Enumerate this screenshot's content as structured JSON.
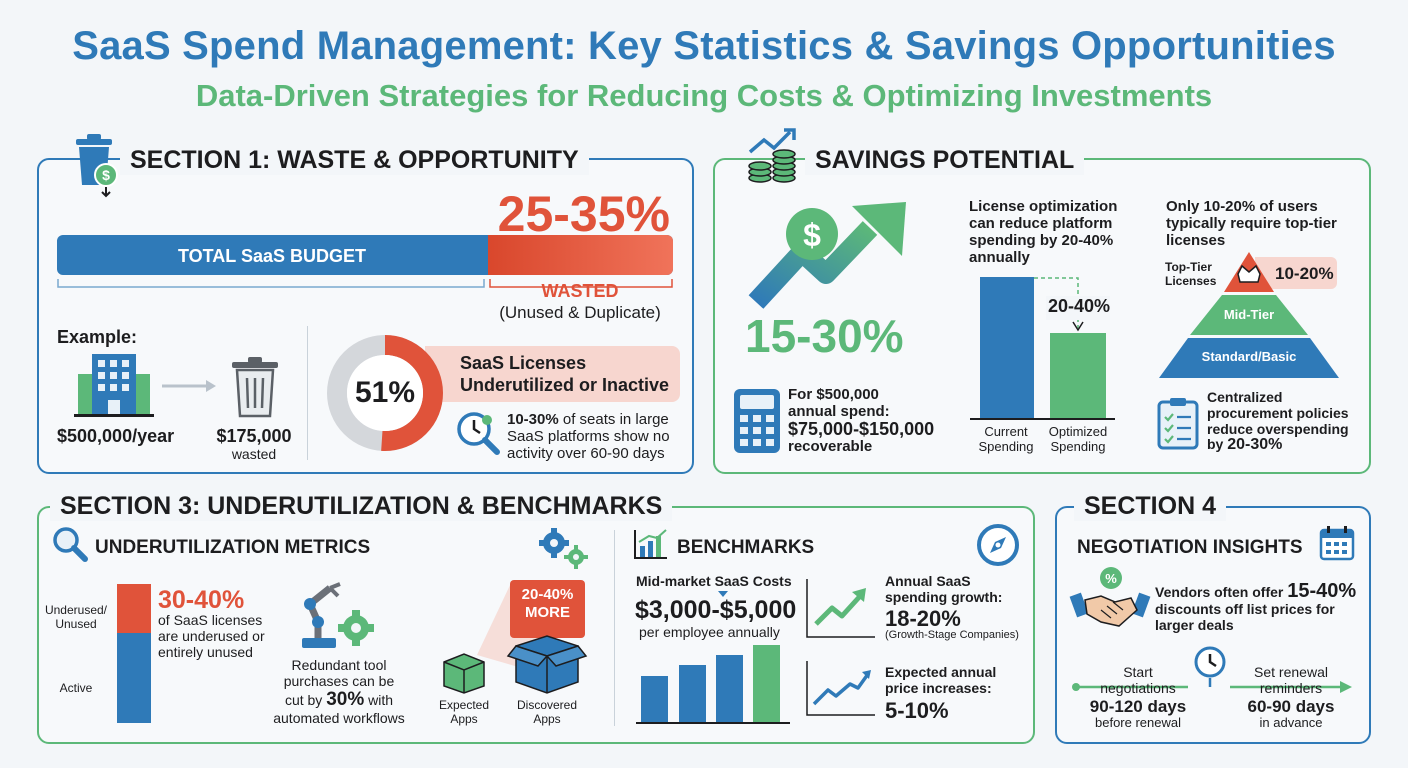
{
  "header": {
    "title": "SaaS Spend Management: Key Statistics & Savings Opportunities",
    "subtitle": "Data-Driven Strategies for Reducing Costs & Optimizing Investments"
  },
  "section1": {
    "heading": "SECTION 1: WASTE & OPPORTUNITY",
    "waste_pct": "25-35%",
    "budget_label": "TOTAL SaaS BUDGET",
    "wasted_label": "WASTED",
    "wasted_note": "(Unused & Duplicate)",
    "wasted_fraction": 0.3,
    "example_label": "Example:",
    "example_spend": "$500,000/year",
    "example_wasted_amount": "$175,000",
    "example_wasted_word": "wasted",
    "donut_value": "51%",
    "donut_fraction": 0.51,
    "licenses_line1": "SaaS Licenses",
    "licenses_line2": "Underutilized or Inactive",
    "seats_pct": "10-30%",
    "seats_text_1": " of seats in large",
    "seats_text_2": "SaaS platforms show no",
    "seats_text_3": "activity over 60-90 days"
  },
  "savings": {
    "heading": "SAVINGS POTENTIAL",
    "big_pct": "15-30%",
    "spend_line1": "For $500,000",
    "spend_line2": "annual spend:",
    "spend_line3": "$75,000-$150,000",
    "spend_line4": "recoverable",
    "license_text_1": "License optimization",
    "license_text_2": "can reduce platform",
    "license_text_3": "spending by 20-40%",
    "license_text_4": "annually",
    "reduction_label": "20-40%",
    "current_label_1": "Current",
    "current_label_2": "Spending",
    "optimized_label_1": "Optimized",
    "optimized_label_2": "Spending",
    "users_text_1": "Only 10-20% of users",
    "users_text_2": "typically require top-tier",
    "users_text_3": "licenses",
    "top_tier_1": "Top-Tier",
    "top_tier_2": "Licenses",
    "top_tier_pct": "10-20%",
    "mid_tier": "Mid-Tier",
    "base_tier": "Standard/Basic",
    "procure_1": "Centralized",
    "procure_2": "procurement policies",
    "procure_3": "reduce overspending",
    "procure_4_pre": "by ",
    "procure_4_pct": "20-30%"
  },
  "section3": {
    "heading": "SECTION 3: UNDERUTILIZATION & BENCHMARKS",
    "metrics_heading": "UNDERUTILIZATION METRICS",
    "underused_label_1": "Underused/",
    "underused_label_2": "Unused",
    "active_label": "Active",
    "underused_fraction": 0.35,
    "underused_pct": "30-40%",
    "underused_text_1": "of SaaS licenses",
    "underused_text_2": "are underused or",
    "underused_text_3": "entirely unused",
    "redundant_1": "Redundant tool",
    "redundant_2": "purchases can be",
    "redundant_3_pre": "cut by ",
    "redundant_3_pct": "30%",
    "redundant_3_post": " with",
    "redundant_4": "automated workflows",
    "more_1": "20-40%",
    "more_2": "MORE",
    "expected_1": "Expected",
    "expected_2": "Apps",
    "discovered_1": "Discovered",
    "discovered_2": "Apps",
    "bench_heading": "BENCHMARKS",
    "midmarket_label": "Mid-market SaaS Costs",
    "midmarket_value": "$3,000-$5,000",
    "midmarket_unit": "per employee annually",
    "growth_1": "Annual SaaS",
    "growth_2": "spending growth:",
    "growth_value": "18-20%",
    "growth_note": "(Growth-Stage Companies)",
    "price_1": "Expected annual",
    "price_2": "price increases:",
    "price_value": "5-10%"
  },
  "section4": {
    "heading": "SECTION 4",
    "sub_heading": "NEGOTIATION INSIGHTS",
    "vendor_1_pre": "Vendors often offer ",
    "vendor_1_pct": "15-40%",
    "vendor_2": "discounts off list prices for",
    "vendor_3": "larger deals",
    "start_1": "Start",
    "start_2": "negotiations",
    "start_3": "90-120 days",
    "start_4": "before renewal",
    "renew_1": "Set renewal",
    "renew_2": "reminders",
    "renew_3": "60-90 days",
    "renew_4": "in advance"
  },
  "colors": {
    "blue": "#2f7ab8",
    "green": "#5cb879",
    "red": "#e0533a",
    "dark": "#1d1d1f"
  }
}
